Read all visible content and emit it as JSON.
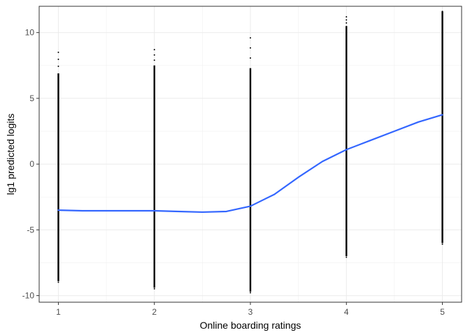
{
  "chart_data": {
    "type": "scatter",
    "title": "",
    "xlabel": "Online boarding ratings",
    "ylabel": "lg1 predicted logits",
    "x_ticks": [
      1,
      2,
      3,
      4,
      5
    ],
    "y_ticks": [
      -10,
      -5,
      0,
      5,
      10
    ],
    "xlim": [
      0.8,
      5.2
    ],
    "ylim": [
      -10.5,
      12.0
    ],
    "grid": true,
    "legend": "none",
    "point_color": "#000000",
    "smooth_color": "#3366FF",
    "points": [
      {
        "x": 1,
        "y_min": -8.9,
        "y_max": 6.9,
        "y_outlier_max": 8.5
      },
      {
        "x": 2,
        "y_min": -9.4,
        "y_max": 7.5,
        "y_outlier_max": 8.7
      },
      {
        "x": 3,
        "y_min": -9.7,
        "y_max": 7.3,
        "y_outlier_max": 9.6
      },
      {
        "x": 4,
        "y_min": -7.0,
        "y_max": 10.5,
        "y_outlier_max": 11.2
      },
      {
        "x": 5,
        "y_min": -6.0,
        "y_max": 11.6,
        "y_outlier_max": 11.6
      }
    ],
    "smooth_line": {
      "x": [
        1.0,
        1.25,
        1.5,
        1.75,
        2.0,
        2.25,
        2.5,
        2.75,
        3.0,
        3.25,
        3.5,
        3.75,
        4.0,
        4.25,
        4.5,
        4.75,
        5.0
      ],
      "y": [
        -3.5,
        -3.55,
        -3.55,
        -3.55,
        -3.55,
        -3.6,
        -3.65,
        -3.6,
        -3.2,
        -2.3,
        -1.0,
        0.2,
        1.1,
        1.8,
        2.5,
        3.2,
        3.75
      ]
    }
  }
}
